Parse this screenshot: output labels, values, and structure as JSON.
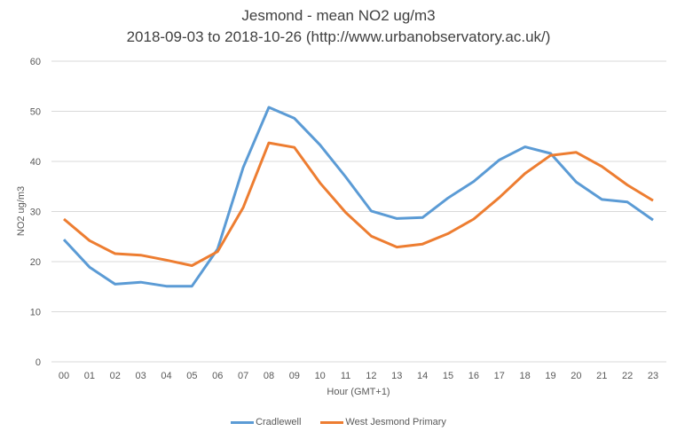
{
  "chart_data": {
    "type": "line",
    "title": "Jesmond - mean NO2 ug/m3",
    "subtitle": "2018-09-03 to 2018-10-26 (http://www.urbanobservatory.ac.uk/)",
    "xlabel": "Hour (GMT+1)",
    "ylabel": "NO2 ug/m3",
    "ylim": [
      0,
      60
    ],
    "yticks": [
      "0",
      "10",
      "20",
      "30",
      "40",
      "50",
      "60"
    ],
    "categories": [
      "00",
      "01",
      "02",
      "03",
      "04",
      "05",
      "06",
      "07",
      "08",
      "09",
      "10",
      "11",
      "12",
      "13",
      "14",
      "15",
      "16",
      "17",
      "18",
      "19",
      "20",
      "21",
      "22",
      "23"
    ],
    "grid": true,
    "legend_position": "bottom",
    "series": [
      {
        "name": "Cradlewell",
        "color": "#5B9BD5",
        "values": [
          24.4,
          18.9,
          15.5,
          15.9,
          15.1,
          15.1,
          22.5,
          38.8,
          50.8,
          48.6,
          43.3,
          36.9,
          30.1,
          28.6,
          28.8,
          32.7,
          36.0,
          40.3,
          42.9,
          41.6,
          35.9,
          32.4,
          31.9,
          28.3
        ]
      },
      {
        "name": "West Jesmond Primary",
        "color": "#ED7D31",
        "values": [
          28.5,
          24.2,
          21.6,
          21.3,
          20.3,
          19.2,
          22.0,
          30.8,
          43.7,
          42.8,
          35.7,
          29.8,
          25.1,
          22.9,
          23.5,
          25.6,
          28.5,
          32.8,
          37.6,
          41.2,
          41.8,
          39.0,
          35.3,
          32.2
        ]
      }
    ]
  }
}
